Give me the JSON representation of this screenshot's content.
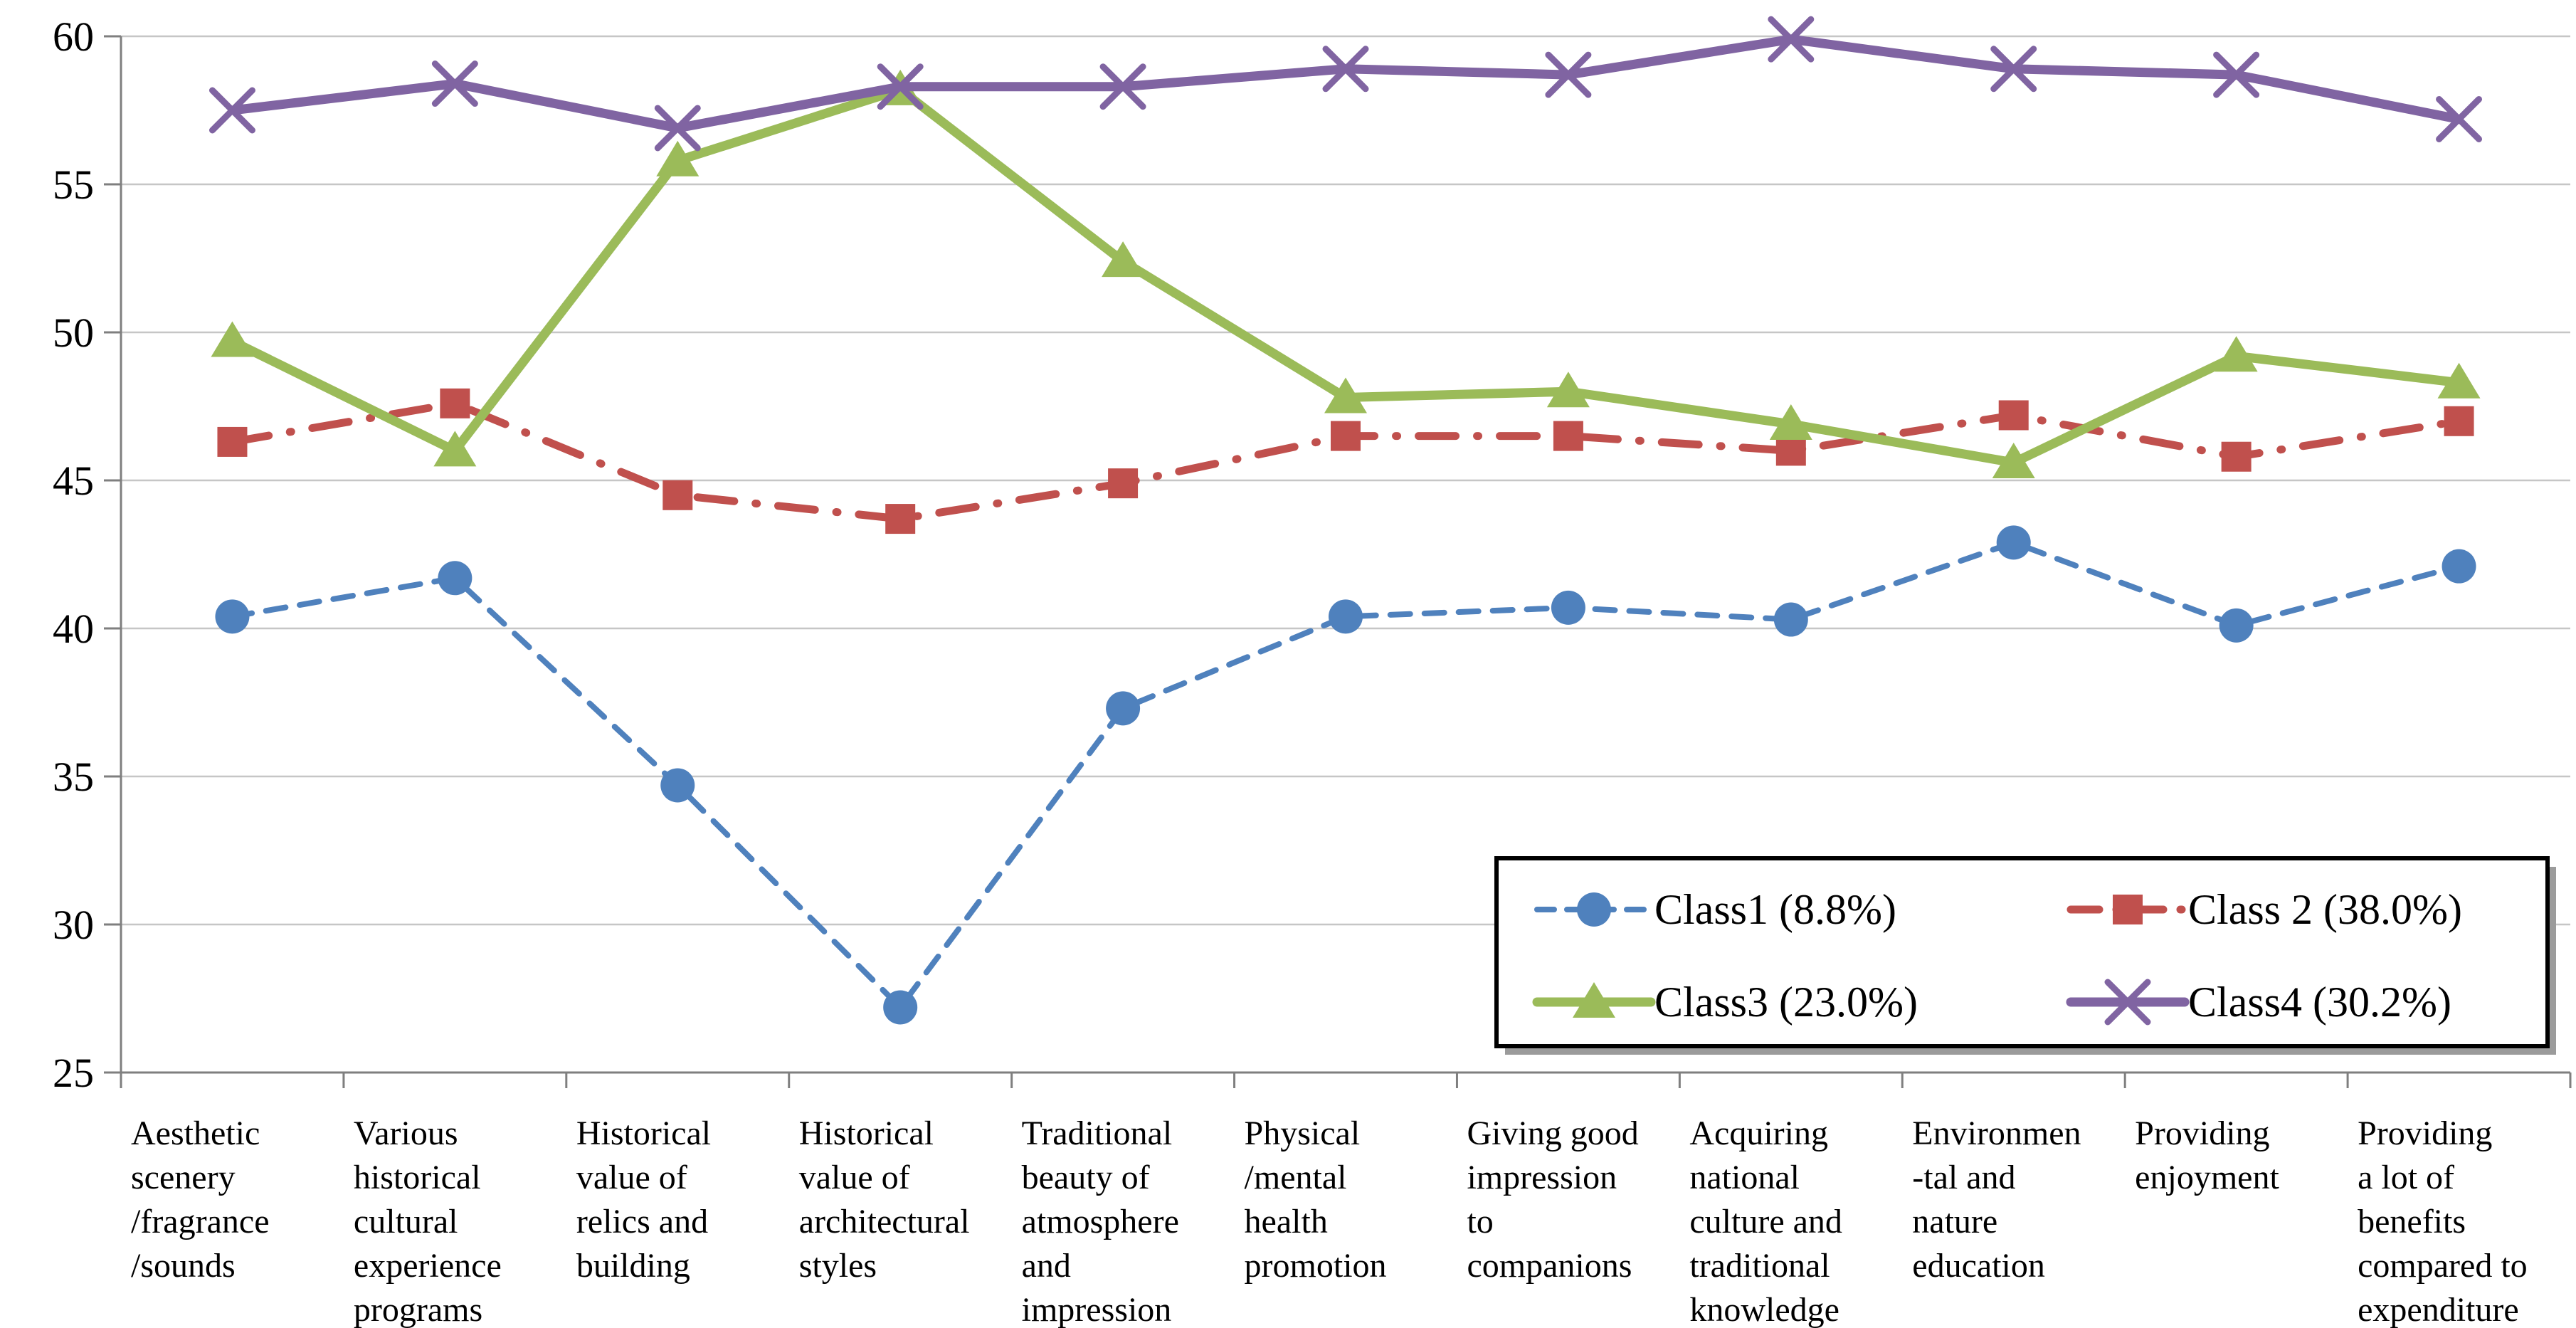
{
  "chart_data": {
    "type": "line",
    "title": "",
    "xlabel": "",
    "ylabel": "",
    "ylim": [
      25,
      60
    ],
    "yticks": [
      25,
      30,
      35,
      40,
      45,
      50,
      55,
      60
    ],
    "grid": true,
    "legend_position": "inside-bottom-right",
    "categories": [
      "Aesthetic scenery /fragrance /sounds",
      "Various historical cultural experience programs",
      "Historical value of relics and building",
      "Historical value of architectural styles",
      "Traditional beauty of atmosphere and impression",
      "Physical /mental health promotion",
      "Giving good impression to companions",
      "Acquiring national culture and traditional knowledge",
      "Environmen -tal and nature education",
      "Providing enjoyment",
      "Providing a lot of benefits compared to expenditure"
    ],
    "category_label_lines": [
      [
        "Aesthetic",
        "scenery",
        "/fragrance",
        "/sounds"
      ],
      [
        "Various",
        "historical",
        "cultural",
        "experience",
        "programs"
      ],
      [
        "Historical",
        "value of",
        "relics and",
        "building"
      ],
      [
        "Historical",
        "value of",
        "architectural",
        "styles"
      ],
      [
        "Traditional",
        "beauty of",
        "atmosphere",
        "and",
        "impression"
      ],
      [
        "Physical",
        "/mental",
        "health",
        "promotion"
      ],
      [
        "Giving good",
        "impression",
        "to",
        "companions"
      ],
      [
        "Acquiring",
        "national",
        "culture and",
        "traditional",
        "knowledge"
      ],
      [
        "Environmen",
        "-tal and",
        "nature",
        "education"
      ],
      [
        "Providing",
        "enjoyment"
      ],
      [
        "Providing",
        "a lot of",
        "benefits",
        "compared to",
        "expenditure"
      ]
    ],
    "series": [
      {
        "name": "Class1 (8.8%)",
        "color": "#4F81BD",
        "marker": "circle",
        "line_style": "dashed",
        "values": [
          40.4,
          41.7,
          34.7,
          27.2,
          37.3,
          40.4,
          40.7,
          40.3,
          42.9,
          40.1,
          42.1
        ]
      },
      {
        "name": "Class 2 (38.0%)",
        "color": "#C0504D",
        "marker": "square",
        "line_style": "dashdot",
        "values": [
          46.3,
          47.6,
          44.5,
          43.7,
          44.9,
          46.5,
          46.5,
          46.0,
          47.2,
          45.8,
          47.0
        ]
      },
      {
        "name": "Class3 (23.0%)",
        "color": "#9BBB59",
        "marker": "triangle",
        "line_style": "solid",
        "values": [
          49.7,
          46.0,
          55.8,
          58.2,
          52.4,
          47.8,
          48.0,
          46.9,
          45.6,
          49.2,
          48.3
        ]
      },
      {
        "name": "Class4 (30.2%)",
        "color": "#8064A2",
        "marker": "x",
        "line_style": "solid",
        "values": [
          57.5,
          58.4,
          56.9,
          58.3,
          58.3,
          58.9,
          58.7,
          59.9,
          58.9,
          58.7,
          57.2
        ]
      }
    ],
    "style_colors": {
      "gridline": "#C6C6C6",
      "axis": "#7F7F7F",
      "legend_border": "#000000",
      "legend_shadow": "#9B9B9B",
      "background": "#FFFFFF"
    }
  }
}
